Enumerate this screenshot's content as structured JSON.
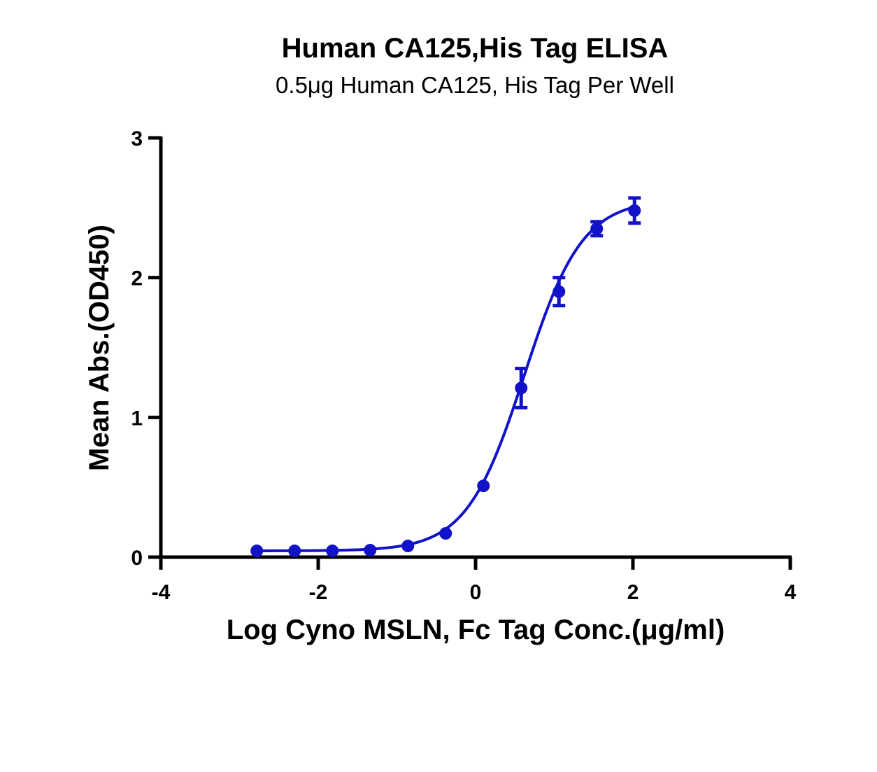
{
  "chart_data": {
    "type": "scatter",
    "title": "Human CA125,His Tag ELISA",
    "subtitle": "0.5μg Human CA125, His Tag Per Well",
    "xlabel": "Log Cyno MSLN, Fc Tag Conc.(μg/ml)",
    "ylabel": "Mean Abs.(OD450)",
    "xlim": [
      -4,
      4
    ],
    "ylim": [
      0,
      3
    ],
    "xticks": [
      "-4",
      "-2",
      "0",
      "2",
      "4"
    ],
    "yticks": [
      "0",
      "1",
      "2",
      "3"
    ],
    "grid": false,
    "color": "#1212c8",
    "series": [
      {
        "x": [
          -2.78,
          -2.3,
          -1.82,
          -1.34,
          -0.86,
          -0.38,
          0.1,
          0.58,
          1.06,
          1.54,
          2.02
        ],
        "y": [
          0.045,
          0.045,
          0.045,
          0.05,
          0.08,
          0.17,
          0.51,
          1.21,
          1.9,
          2.35,
          2.48
        ],
        "err": [
          0.0,
          0.0,
          0.0,
          0.0,
          0.0,
          0.0,
          0.0,
          0.14,
          0.1,
          0.05,
          0.09
        ]
      }
    ],
    "fit": {
      "bottom": 0.045,
      "top": 2.56,
      "logEC50": 0.62,
      "hill": 1.18
    }
  }
}
